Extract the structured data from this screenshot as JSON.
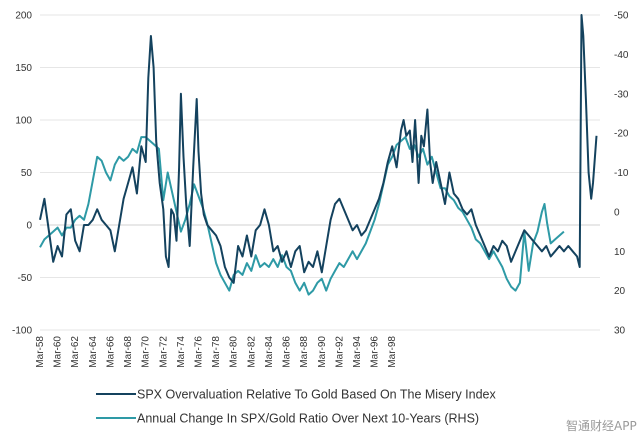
{
  "watermark": "智通财经APP",
  "chart_data": {
    "type": "line",
    "title": "",
    "xlabel": "",
    "ylabel": "",
    "ylim": [
      -100,
      200
    ],
    "y2lim": [
      -50,
      30
    ],
    "y2_inverted": true,
    "grid": true,
    "legend_position": "bottom",
    "left_ticks": [
      "200",
      "150",
      "100",
      "50",
      "0",
      "-50",
      "-100"
    ],
    "right_ticks": [
      "-50",
      "-40",
      "-30",
      "-20",
      "-10",
      "0",
      "10",
      "20",
      "30"
    ],
    "x_ticks": [
      "Mar-58",
      "Mar-60",
      "Mar-62",
      "Mar-64",
      "Mar-66",
      "Mar-68",
      "Mar-70",
      "Mar-72",
      "Mar-74",
      "Mar-76",
      "Mar-78",
      "Mar-80",
      "Mar-82",
      "Mar-84",
      "Mar-86",
      "Mar-88",
      "Mar-90",
      "Mar-92",
      "Mar-94",
      "Mar-96",
      "Mar-98",
      "Mar-00",
      "Mar-02",
      "Mar-04",
      "Mar-06",
      "Mar-08",
      "Mar-10",
      "Mar-12",
      "Mar-14",
      "Mar-16",
      "Mar-18",
      "Mar-20"
    ],
    "series": [
      {
        "name": "SPX Overvaluation Relative To Gold Based On The Misery Index",
        "axis": "left",
        "color": "#14425e",
        "points": [
          [
            1958.0,
            5
          ],
          [
            1958.5,
            25
          ],
          [
            1959.0,
            -5
          ],
          [
            1959.5,
            -35
          ],
          [
            1960.0,
            -20
          ],
          [
            1960.5,
            -30
          ],
          [
            1961.0,
            10
          ],
          [
            1961.5,
            15
          ],
          [
            1962.0,
            -15
          ],
          [
            1962.5,
            -25
          ],
          [
            1963.0,
            0
          ],
          [
            1963.5,
            0
          ],
          [
            1964.0,
            5
          ],
          [
            1964.5,
            15
          ],
          [
            1965.0,
            5
          ],
          [
            1965.5,
            0
          ],
          [
            1966.0,
            -5
          ],
          [
            1966.5,
            -25
          ],
          [
            1967.0,
            0
          ],
          [
            1967.5,
            25
          ],
          [
            1968.0,
            40
          ],
          [
            1968.5,
            55
          ],
          [
            1969.0,
            30
          ],
          [
            1969.5,
            75
          ],
          [
            1970.0,
            60
          ],
          [
            1970.3,
            140
          ],
          [
            1970.6,
            180
          ],
          [
            1970.9,
            150
          ],
          [
            1971.2,
            80
          ],
          [
            1971.6,
            40
          ],
          [
            1972.0,
            15
          ],
          [
            1972.3,
            -30
          ],
          [
            1972.6,
            -40
          ],
          [
            1972.9,
            15
          ],
          [
            1973.2,
            10
          ],
          [
            1973.5,
            -15
          ],
          [
            1973.8,
            55
          ],
          [
            1974.0,
            125
          ],
          [
            1974.3,
            65
          ],
          [
            1974.6,
            20
          ],
          [
            1975.0,
            -20
          ],
          [
            1975.4,
            55
          ],
          [
            1975.8,
            120
          ],
          [
            1976.0,
            70
          ],
          [
            1976.3,
            30
          ],
          [
            1976.6,
            10
          ],
          [
            1977.0,
            0
          ],
          [
            1977.5,
            -5
          ],
          [
            1978.0,
            -10
          ],
          [
            1978.5,
            -20
          ],
          [
            1979.0,
            -40
          ],
          [
            1979.5,
            -50
          ],
          [
            1980.0,
            -55
          ],
          [
            1980.5,
            -20
          ],
          [
            1981.0,
            -30
          ],
          [
            1981.5,
            -10
          ],
          [
            1982.0,
            -30
          ],
          [
            1982.5,
            -5
          ],
          [
            1983.0,
            0
          ],
          [
            1983.5,
            15
          ],
          [
            1984.0,
            0
          ],
          [
            1984.5,
            -25
          ],
          [
            1985.0,
            -20
          ],
          [
            1985.5,
            -35
          ],
          [
            1986.0,
            -25
          ],
          [
            1986.5,
            -40
          ],
          [
            1987.0,
            -25
          ],
          [
            1987.5,
            -20
          ],
          [
            1988.0,
            -45
          ],
          [
            1988.5,
            -35
          ],
          [
            1989.0,
            -40
          ],
          [
            1989.5,
            -25
          ],
          [
            1990.0,
            -45
          ],
          [
            1990.5,
            -20
          ],
          [
            1991.0,
            5
          ],
          [
            1991.5,
            20
          ],
          [
            1992.0,
            25
          ],
          [
            1992.5,
            15
          ],
          [
            1993.0,
            5
          ],
          [
            1993.5,
            -5
          ],
          [
            1994.0,
            0
          ],
          [
            1994.5,
            -10
          ],
          [
            1995.0,
            -5
          ],
          [
            1995.5,
            5
          ],
          [
            1996.0,
            15
          ],
          [
            1996.5,
            25
          ],
          [
            1997.0,
            40
          ],
          [
            1997.5,
            60
          ],
          [
            1998.0,
            75
          ],
          [
            1998.5,
            55
          ],
          [
            1999.0,
            90
          ],
          [
            1999.3,
            100
          ],
          [
            1999.6,
            85
          ],
          [
            2000.0,
            90
          ],
          [
            2000.3,
            60
          ],
          [
            2000.6,
            100
          ],
          [
            2001.0,
            40
          ],
          [
            2001.3,
            85
          ],
          [
            2001.6,
            75
          ],
          [
            2002.0,
            110
          ],
          [
            2002.3,
            60
          ],
          [
            2002.6,
            40
          ],
          [
            2003.0,
            60
          ],
          [
            2003.5,
            40
          ],
          [
            2004.0,
            20
          ],
          [
            2004.5,
            50
          ],
          [
            2005.0,
            30
          ],
          [
            2005.5,
            25
          ],
          [
            2006.0,
            15
          ],
          [
            2006.5,
            10
          ],
          [
            2007.0,
            15
          ],
          [
            2007.5,
            0
          ],
          [
            2008.0,
            -10
          ],
          [
            2008.5,
            -20
          ],
          [
            2009.0,
            -30
          ],
          [
            2009.5,
            -20
          ],
          [
            2010.0,
            -25
          ],
          [
            2010.5,
            -15
          ],
          [
            2011.0,
            -20
          ],
          [
            2011.5,
            -35
          ],
          [
            2012.0,
            -25
          ],
          [
            2012.5,
            -15
          ],
          [
            2013.0,
            -5
          ],
          [
            2013.5,
            -10
          ],
          [
            2014.0,
            -15
          ],
          [
            2014.5,
            -20
          ],
          [
            2015.0,
            -25
          ],
          [
            2015.5,
            -20
          ],
          [
            2016.0,
            -30
          ],
          [
            2016.5,
            -25
          ],
          [
            2017.0,
            -20
          ],
          [
            2017.5,
            -25
          ],
          [
            2018.0,
            -20
          ],
          [
            2018.5,
            -25
          ],
          [
            2019.0,
            -30
          ],
          [
            2019.3,
            -40
          ],
          [
            2019.5,
            200
          ],
          [
            2019.7,
            180
          ],
          [
            2020.0,
            120
          ],
          [
            2020.3,
            50
          ],
          [
            2020.6,
            25
          ],
          [
            2020.8,
            40
          ],
          [
            2021.2,
            85
          ]
        ]
      },
      {
        "name": "Annual Change In SPX/Gold Ratio Over Next 10-Years (RHS)",
        "axis": "right",
        "color": "#2e9aa6",
        "points": [
          [
            1958.0,
            9
          ],
          [
            1958.5,
            7
          ],
          [
            1959.0,
            6
          ],
          [
            1959.5,
            5
          ],
          [
            1960.0,
            4
          ],
          [
            1960.5,
            6
          ],
          [
            1961.0,
            4
          ],
          [
            1961.5,
            4
          ],
          [
            1962.0,
            2
          ],
          [
            1962.5,
            1
          ],
          [
            1963.0,
            2
          ],
          [
            1963.5,
            -2
          ],
          [
            1964.0,
            -8
          ],
          [
            1964.5,
            -14
          ],
          [
            1965.0,
            -13
          ],
          [
            1965.5,
            -10
          ],
          [
            1966.0,
            -8
          ],
          [
            1966.5,
            -12
          ],
          [
            1967.0,
            -14
          ],
          [
            1967.5,
            -13
          ],
          [
            1968.0,
            -14
          ],
          [
            1968.5,
            -16
          ],
          [
            1969.0,
            -15
          ],
          [
            1969.5,
            -19
          ],
          [
            1970.0,
            -19
          ],
          [
            1970.5,
            -18
          ],
          [
            1971.0,
            -17
          ],
          [
            1971.5,
            -16
          ],
          [
            1972.0,
            -3
          ],
          [
            1972.5,
            -10
          ],
          [
            1973.0,
            -5
          ],
          [
            1973.5,
            0
          ],
          [
            1974.0,
            5
          ],
          [
            1974.5,
            2
          ],
          [
            1975.0,
            -2
          ],
          [
            1975.5,
            -7
          ],
          [
            1976.0,
            -4
          ],
          [
            1976.5,
            -1
          ],
          [
            1977.0,
            3
          ],
          [
            1977.5,
            8
          ],
          [
            1978.0,
            13
          ],
          [
            1978.5,
            16
          ],
          [
            1979.0,
            18
          ],
          [
            1979.5,
            20
          ],
          [
            1980.0,
            16
          ],
          [
            1980.5,
            15
          ],
          [
            1981.0,
            16
          ],
          [
            1981.5,
            13
          ],
          [
            1982.0,
            15
          ],
          [
            1982.5,
            11
          ],
          [
            1983.0,
            14
          ],
          [
            1983.5,
            13
          ],
          [
            1984.0,
            14
          ],
          [
            1984.5,
            12
          ],
          [
            1985.0,
            14
          ],
          [
            1985.5,
            11
          ],
          [
            1986.0,
            14
          ],
          [
            1986.5,
            15
          ],
          [
            1987.0,
            18
          ],
          [
            1987.5,
            20
          ],
          [
            1988.0,
            18
          ],
          [
            1988.5,
            21
          ],
          [
            1989.0,
            20
          ],
          [
            1989.5,
            18
          ],
          [
            1990.0,
            17
          ],
          [
            1990.5,
            20
          ],
          [
            1991.0,
            17
          ],
          [
            1991.5,
            15
          ],
          [
            1992.0,
            13
          ],
          [
            1992.5,
            14
          ],
          [
            1993.0,
            12
          ],
          [
            1993.5,
            10
          ],
          [
            1994.0,
            12
          ],
          [
            1994.5,
            10
          ],
          [
            1995.0,
            8
          ],
          [
            1995.5,
            5
          ],
          [
            1996.0,
            2
          ],
          [
            1996.5,
            -2
          ],
          [
            1997.0,
            -7
          ],
          [
            1997.5,
            -12
          ],
          [
            1998.0,
            -14
          ],
          [
            1998.5,
            -17
          ],
          [
            1999.0,
            -18
          ],
          [
            1999.5,
            -19
          ],
          [
            2000.0,
            -16
          ],
          [
            2000.5,
            -17
          ],
          [
            2001.0,
            -14
          ],
          [
            2001.5,
            -16
          ],
          [
            2002.0,
            -12
          ],
          [
            2002.5,
            -14
          ],
          [
            2003.0,
            -10
          ],
          [
            2003.5,
            -6
          ],
          [
            2004.0,
            -6
          ],
          [
            2004.5,
            -4
          ],
          [
            2005.0,
            -3
          ],
          [
            2005.5,
            -1
          ],
          [
            2006.0,
            0
          ],
          [
            2006.5,
            2
          ],
          [
            2007.0,
            4
          ],
          [
            2007.5,
            7
          ],
          [
            2008.0,
            8
          ],
          [
            2008.5,
            10
          ],
          [
            2009.0,
            12
          ],
          [
            2009.5,
            10
          ],
          [
            2010.0,
            12
          ],
          [
            2010.5,
            14
          ],
          [
            2011.0,
            17
          ],
          [
            2011.5,
            19
          ],
          [
            2012.0,
            20
          ],
          [
            2012.5,
            18
          ],
          [
            2013.0,
            5
          ],
          [
            2013.5,
            15
          ],
          [
            2014.0,
            8
          ],
          [
            2014.5,
            5
          ],
          [
            2015.0,
            0
          ],
          [
            2015.3,
            -2
          ],
          [
            2015.6,
            3
          ],
          [
            2016.0,
            8
          ],
          [
            2016.5,
            7
          ],
          [
            2017.0,
            6
          ],
          [
            2017.5,
            5
          ]
        ]
      }
    ]
  }
}
